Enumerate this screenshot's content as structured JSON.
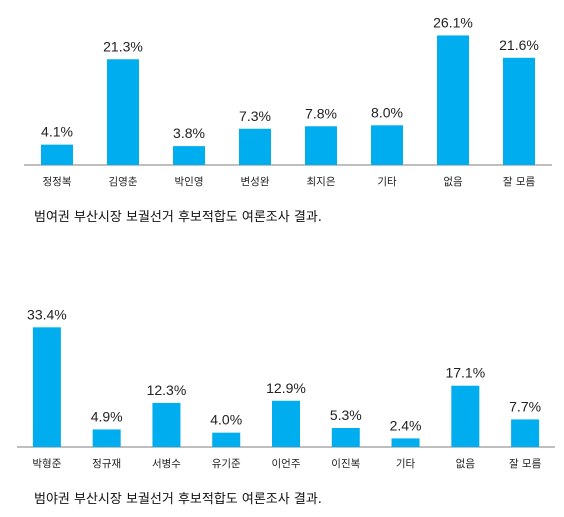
{
  "colors": {
    "bar": "#00aeef",
    "axis": "#7f7f7f",
    "text": "#222222"
  },
  "chart_data": [
    {
      "type": "bar",
      "categories": [
        "정정복",
        "김영춘",
        "박인영",
        "변성완",
        "최지은",
        "기타",
        "없음",
        "잘 모름"
      ],
      "values": [
        4.1,
        21.3,
        3.8,
        7.3,
        7.8,
        8.0,
        26.1,
        21.6
      ],
      "value_labels": [
        "4.1%",
        "21.3%",
        "3.8%",
        "7.3%",
        "7.8%",
        "8.0%",
        "26.1%",
        "21.6%"
      ],
      "ylim": [
        0,
        28
      ],
      "grid": false,
      "caption": "범여권 부산시장 보궐선거 후보적합도 여론조사 결과."
    },
    {
      "type": "bar",
      "categories": [
        "박형준",
        "정규재",
        "서병수",
        "유기준",
        "이언주",
        "이진복",
        "기타",
        "없음",
        "잘 모름"
      ],
      "values": [
        33.4,
        4.9,
        12.3,
        4.0,
        12.9,
        5.3,
        2.4,
        17.1,
        7.7
      ],
      "value_labels": [
        "33.4%",
        "4.9%",
        "12.3%",
        "4.0%",
        "12.9%",
        "5.3%",
        "2.4%",
        "17.1%",
        "7.7%"
      ],
      "ylim": [
        0,
        36
      ],
      "grid": false,
      "caption": "범야권 부산시장 보궐선거 후보적합도 여론조사 결과."
    }
  ]
}
